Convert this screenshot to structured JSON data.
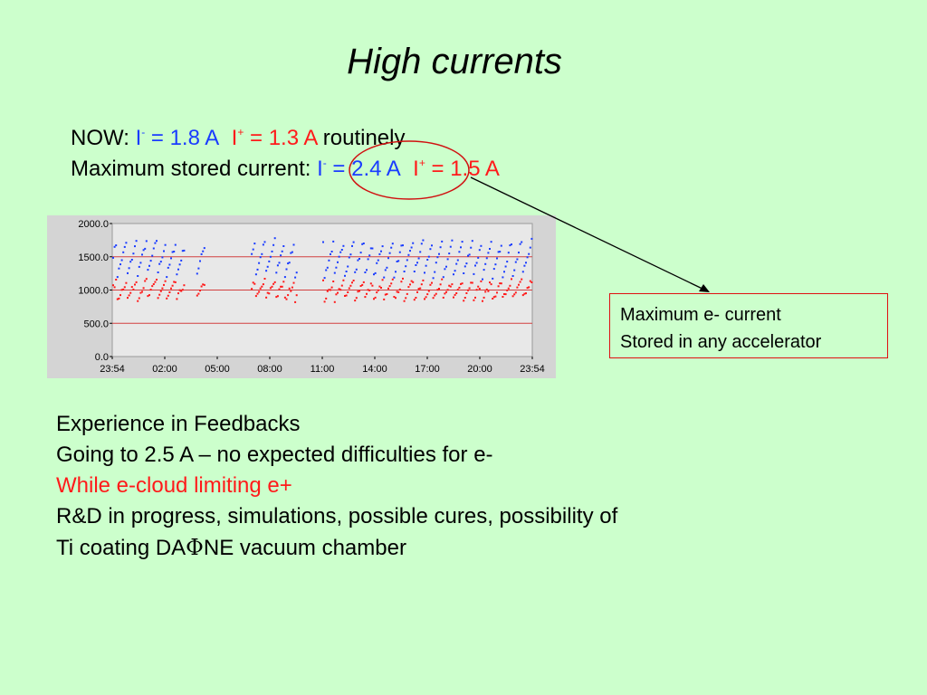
{
  "slide": {
    "title": "High currents",
    "now_line": {
      "prefix": "NOW: ",
      "i_minus_sym": "I",
      "minus_sup": "-",
      "i_minus_val": " = 1.8 A",
      "i_plus_sym": "I",
      "plus_sup": "+",
      "i_plus_val": " = 1.3 A",
      "suffix": " routinely"
    },
    "max_line": {
      "prefix": "Maximum stored current: ",
      "i_minus_sym": "I",
      "minus_sup": "-",
      "i_minus_val": " = 2.4 A",
      "i_plus_sym": "I",
      "plus_sup": "+",
      "i_plus_val": " = 1.5 A"
    },
    "callout": {
      "line1": "Maximum e- current",
      "line2": "Stored in any accelerator"
    },
    "body": {
      "line1": "Experience in Feedbacks",
      "line2": "Going to 2.5 A – no expected difficulties for e-",
      "line3": "While e-cloud limiting e+",
      "line4": "R&D in progress, simulations, possible cures, possibility of",
      "line5_a": "Ti coating DA",
      "line5_phi": "Φ",
      "line5_b": "NE vacuum chamber"
    },
    "colors": {
      "background": "#ccffcc",
      "electron_blue": "#1a3cff",
      "positron_red": "#ff1a1a"
    }
  },
  "chart_data": {
    "type": "scatter",
    "x_tick_labels": [
      "23:54",
      "02:00",
      "05:00",
      "08:00",
      "11:00",
      "14:00",
      "17:00",
      "20:00",
      "23:54"
    ],
    "y_tick_labels": [
      "2000.0",
      "1500.0",
      "1000.0",
      "500.0",
      "0.0"
    ],
    "ylim": [
      0,
      2000
    ],
    "reference_lines": [
      1500,
      1000,
      500
    ],
    "series": [
      {
        "color": "#1a3cff",
        "typical_min": 1200,
        "typical_max": 1750,
        "segments": [
          [
            0.0,
            0.17
          ],
          [
            0.2,
            0.22
          ],
          [
            0.33,
            0.44
          ],
          [
            0.5,
            1.0
          ]
        ]
      },
      {
        "color": "#ff1a1a",
        "typical_min": 850,
        "typical_max": 1150,
        "segments": [
          [
            0.0,
            0.17
          ],
          [
            0.2,
            0.22
          ],
          [
            0.33,
            0.44
          ],
          [
            0.5,
            1.0
          ]
        ]
      }
    ]
  }
}
